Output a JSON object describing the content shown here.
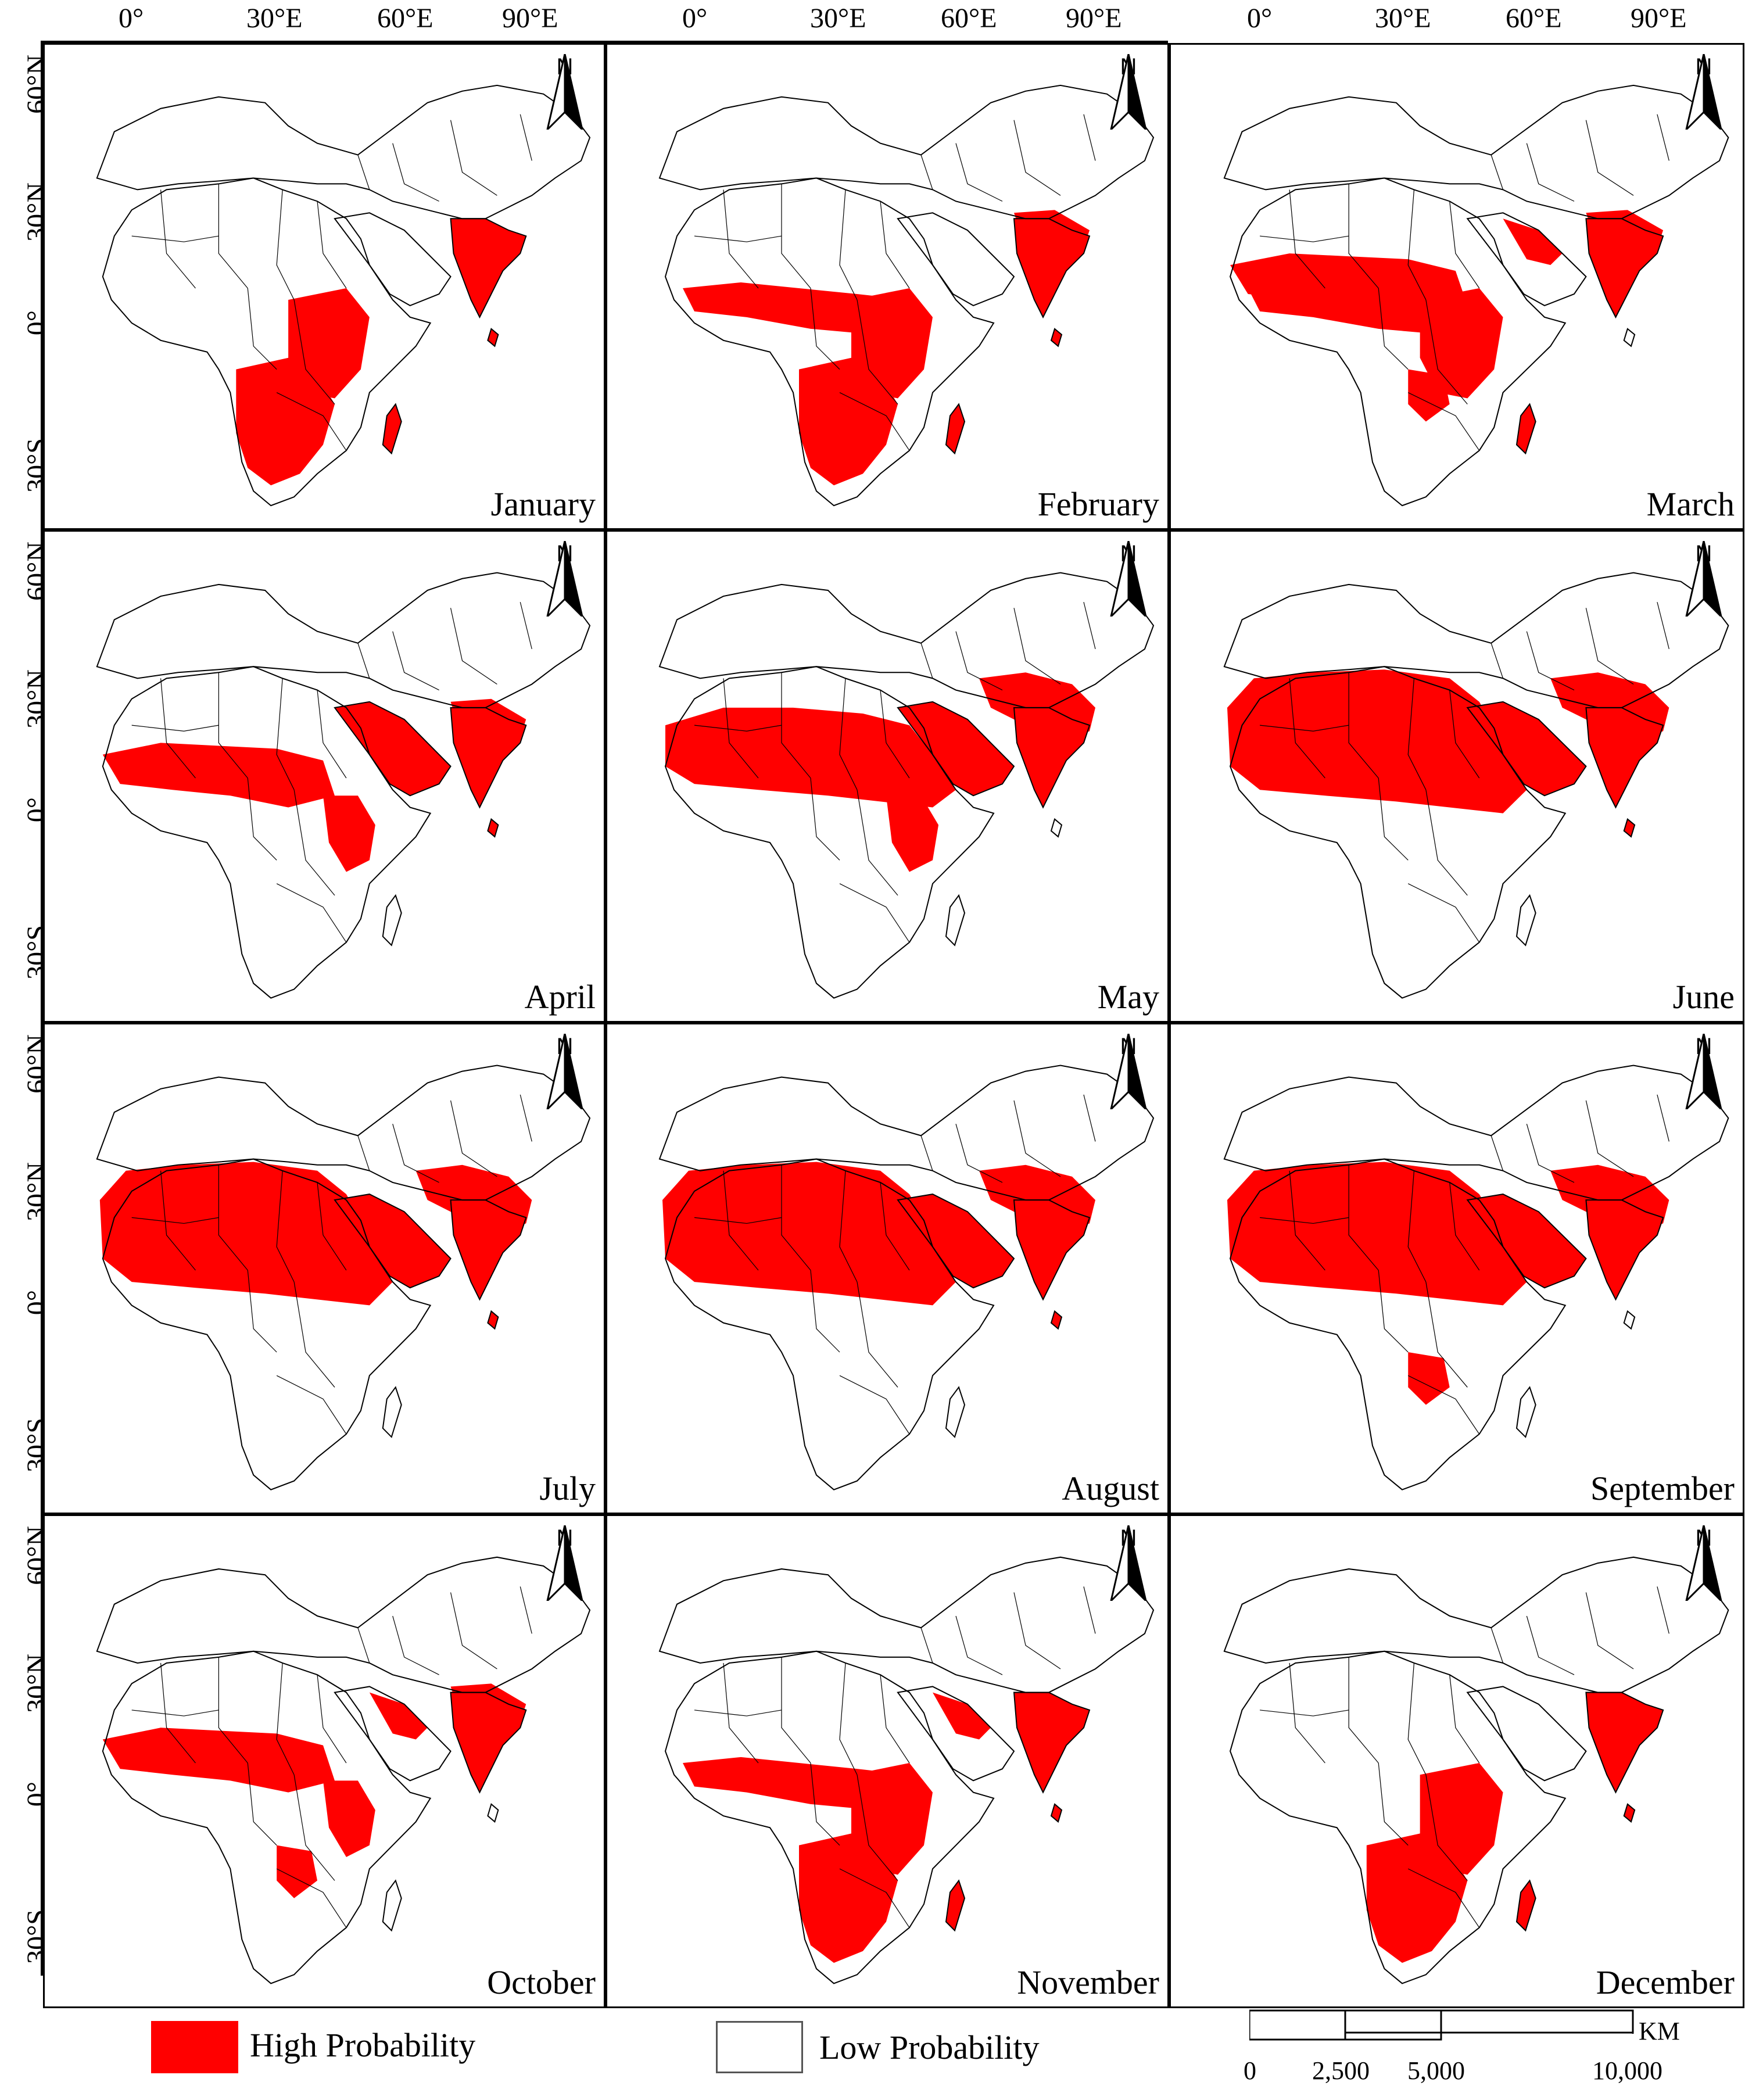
{
  "axes": {
    "top_labels": [
      "0°",
      "30°E",
      "60°E",
      "90°E"
    ],
    "left_labels": [
      "60°N",
      "30°N",
      "0°",
      "30°S"
    ]
  },
  "panels": [
    {
      "month": "January"
    },
    {
      "month": "February"
    },
    {
      "month": "March"
    },
    {
      "month": "April"
    },
    {
      "month": "May"
    },
    {
      "month": "June"
    },
    {
      "month": "July"
    },
    {
      "month": "August"
    },
    {
      "month": "September"
    },
    {
      "month": "October"
    },
    {
      "month": "November"
    },
    {
      "month": "December"
    }
  ],
  "north_arrow_label": "N",
  "legend": {
    "high": {
      "label": "High Probability",
      "color": "#ff0000"
    },
    "low": {
      "label": "Low Probability",
      "color": "#ffffff"
    }
  },
  "scale_bar": {
    "labels": [
      "0",
      "2,500",
      "5,000",
      "10,000"
    ],
    "unit": "KM"
  }
}
